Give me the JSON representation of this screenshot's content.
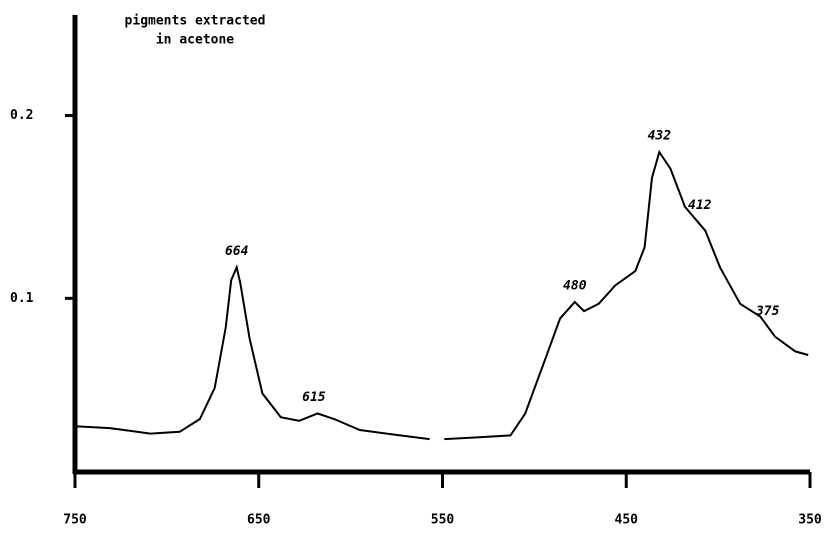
{
  "chart_data": {
    "type": "line",
    "title": [
      "pigments extracted",
      "in acetone"
    ],
    "x": [
      750,
      731,
      709,
      693,
      682,
      674,
      668,
      665,
      662,
      660,
      655,
      648,
      638,
      628,
      618,
      609,
      595,
      573,
      557,
      555,
      549,
      530,
      513,
      505,
      494,
      486,
      478,
      473,
      465,
      456,
      445,
      440,
      436,
      432,
      426,
      418,
      407,
      399,
      388,
      377,
      369,
      358,
      351
    ],
    "values": [
      0.03,
      0.029,
      0.026,
      0.027,
      0.034,
      0.051,
      0.084,
      0.11,
      0.117,
      0.108,
      0.078,
      0.048,
      0.035,
      0.033,
      0.037,
      0.034,
      0.028,
      0.025,
      0.023,
      null,
      0.023,
      0.024,
      0.025,
      0.037,
      0.067,
      0.089,
      0.098,
      0.093,
      0.097,
      0.107,
      0.115,
      0.128,
      0.166,
      0.18,
      0.171,
      0.15,
      0.137,
      0.117,
      0.097,
      0.09,
      0.079,
      0.071,
      0.069
    ],
    "color": "#000000",
    "xlim": [
      750,
      350
    ],
    "xticks": [
      750,
      650,
      550,
      450,
      350
    ],
    "ylim": [
      0.005,
      0.255
    ],
    "yticks": [
      0.1,
      0.2
    ],
    "annotations": [
      {
        "label": "664",
        "x": 662,
        "y": 0.117
      },
      {
        "label": "615",
        "x": 620,
        "y": 0.037
      },
      {
        "label": "480",
        "x": 478,
        "y": 0.098
      },
      {
        "label": "432",
        "x": 432,
        "y": 0.18
      },
      {
        "label": "412",
        "x": 410,
        "y": 0.142
      },
      {
        "label": "375",
        "x": 373,
        "y": 0.084
      }
    ]
  }
}
